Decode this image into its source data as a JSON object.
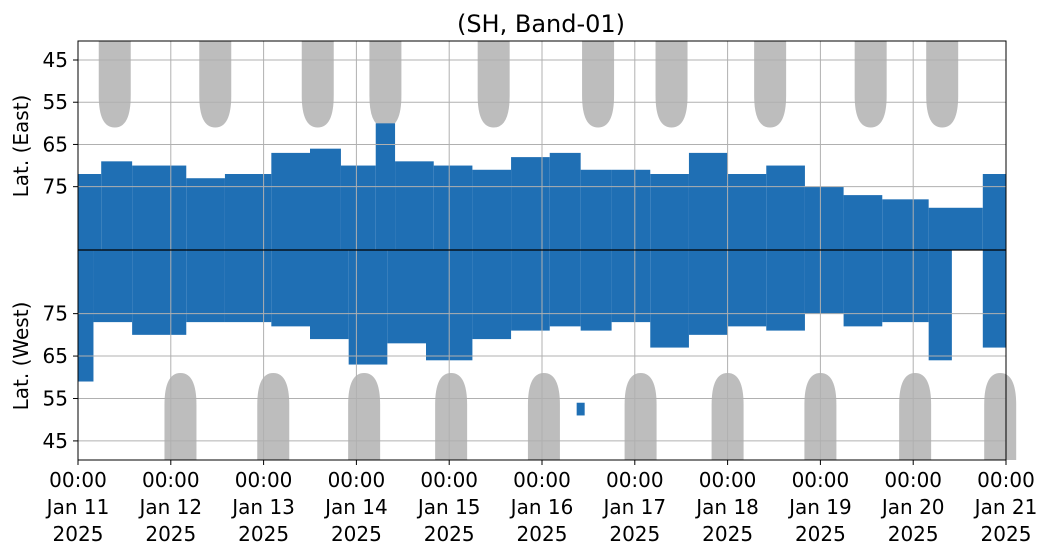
{
  "chart_data": {
    "type": "heatmap",
    "title": "(SH, Band-01)",
    "ylabel_top": "Lat. (East)",
    "ylabel_bottom": "Lat. (West)",
    "x_range": [
      "2025-01-11 00:00",
      "2025-01-21 00:00"
    ],
    "x_tick_labels": [
      {
        "date": "2025-01-11",
        "time": "00:00",
        "day": "Jan 11",
        "year": "2025"
      },
      {
        "date": "2025-01-12",
        "time": "00:00",
        "day": "Jan 12",
        "year": "2025"
      },
      {
        "date": "2025-01-13",
        "time": "00:00",
        "day": "Jan 13",
        "year": "2025"
      },
      {
        "date": "2025-01-14",
        "time": "00:00",
        "day": "Jan 14",
        "year": "2025"
      },
      {
        "date": "2025-01-15",
        "time": "00:00",
        "day": "Jan 15",
        "year": "2025"
      },
      {
        "date": "2025-01-16",
        "time": "00:00",
        "day": "Jan 16",
        "year": "2025"
      },
      {
        "date": "2025-01-17",
        "time": "00:00",
        "day": "Jan 17",
        "year": "2025"
      },
      {
        "date": "2025-01-18",
        "time": "00:00",
        "day": "Jan 18",
        "year": "2025"
      },
      {
        "date": "2025-01-19",
        "time": "00:00",
        "day": "Jan 19",
        "year": "2025"
      },
      {
        "date": "2025-01-20",
        "time": "00:00",
        "day": "Jan 20",
        "year": "2025"
      },
      {
        "date": "2025-01-21",
        "time": "00:00",
        "day": "Jan 21",
        "year": "2025"
      }
    ],
    "east_ticks": [
      "45",
      "55",
      "65",
      "75"
    ],
    "west_ticks": [
      "75",
      "65",
      "55",
      "45"
    ],
    "grid": true,
    "colors": {
      "activity_dark": "#1f6fb4",
      "activity_light": "#6aa6d2",
      "no_coverage": "#bdbdbd",
      "grid": "#b0b0b0",
      "divider": "#000000"
    },
    "no_coverage_east": [
      {
        "center": "2025-01-11 09:30",
        "lowest_lat": 61
      },
      {
        "center": "2025-01-12 11:30",
        "lowest_lat": 61
      },
      {
        "center": "2025-01-13 14:00",
        "lowest_lat": 61
      },
      {
        "center": "2025-01-14 07:30",
        "lowest_lat": 61
      },
      {
        "center": "2025-01-15 11:30",
        "lowest_lat": 61
      },
      {
        "center": "2025-01-16 14:30",
        "lowest_lat": 61
      },
      {
        "center": "2025-01-17 09:30",
        "lowest_lat": 61
      },
      {
        "center": "2025-01-18 11:00",
        "lowest_lat": 61
      },
      {
        "center": "2025-01-19 13:00",
        "lowest_lat": 61
      },
      {
        "center": "2025-01-20 07:30",
        "lowest_lat": 61
      }
    ],
    "no_coverage_west": [
      {
        "center": "2025-01-12 02:30",
        "lowest_lat": 61
      },
      {
        "center": "2025-01-13 02:30",
        "lowest_lat": 61
      },
      {
        "center": "2025-01-14 02:00",
        "lowest_lat": 61
      },
      {
        "center": "2025-01-15 00:30",
        "lowest_lat": 61
      },
      {
        "center": "2025-01-16 00:30",
        "lowest_lat": 61
      },
      {
        "center": "2025-01-17 01:30",
        "lowest_lat": 61
      },
      {
        "center": "2025-01-18 00:00",
        "lowest_lat": 61
      },
      {
        "center": "2025-01-19 00:00",
        "lowest_lat": 61
      },
      {
        "center": "2025-01-20 00:30",
        "lowest_lat": 61
      },
      {
        "center": "2025-01-20 22:30",
        "lowest_lat": 61
      }
    ],
    "activity_east": [
      {
        "start": "2025-01-11 00:00",
        "end": "2025-01-11 06:00",
        "lowest_lat": 72
      },
      {
        "start": "2025-01-11 06:00",
        "end": "2025-01-11 14:00",
        "lowest_lat": 69
      },
      {
        "start": "2025-01-11 14:00",
        "end": "2025-01-12 04:00",
        "lowest_lat": 70
      },
      {
        "start": "2025-01-12 04:00",
        "end": "2025-01-12 14:00",
        "lowest_lat": 73
      },
      {
        "start": "2025-01-12 14:00",
        "end": "2025-01-13 02:00",
        "lowest_lat": 72
      },
      {
        "start": "2025-01-13 02:00",
        "end": "2025-01-13 12:00",
        "lowest_lat": 67
      },
      {
        "start": "2025-01-13 12:00",
        "end": "2025-01-13 20:00",
        "lowest_lat": 66
      },
      {
        "start": "2025-01-13 20:00",
        "end": "2025-01-14 05:00",
        "lowest_lat": 70
      },
      {
        "start": "2025-01-14 05:00",
        "end": "2025-01-14 10:00",
        "lowest_lat": 60
      },
      {
        "start": "2025-01-14 10:00",
        "end": "2025-01-14 20:00",
        "lowest_lat": 69
      },
      {
        "start": "2025-01-14 20:00",
        "end": "2025-01-15 06:00",
        "lowest_lat": 70
      },
      {
        "start": "2025-01-15 06:00",
        "end": "2025-01-15 16:00",
        "lowest_lat": 71
      },
      {
        "start": "2025-01-15 16:00",
        "end": "2025-01-16 02:00",
        "lowest_lat": 68
      },
      {
        "start": "2025-01-16 02:00",
        "end": "2025-01-16 10:00",
        "lowest_lat": 67
      },
      {
        "start": "2025-01-16 10:00",
        "end": "2025-01-16 18:00",
        "lowest_lat": 71
      },
      {
        "start": "2025-01-16 18:00",
        "end": "2025-01-17 04:00",
        "lowest_lat": 71
      },
      {
        "start": "2025-01-17 04:00",
        "end": "2025-01-17 14:00",
        "lowest_lat": 72
      },
      {
        "start": "2025-01-17 14:00",
        "end": "2025-01-18 00:00",
        "lowest_lat": 67
      },
      {
        "start": "2025-01-18 00:00",
        "end": "2025-01-18 10:00",
        "lowest_lat": 72
      },
      {
        "start": "2025-01-18 10:00",
        "end": "2025-01-18 20:00",
        "lowest_lat": 70
      },
      {
        "start": "2025-01-18 20:00",
        "end": "2025-01-19 06:00",
        "lowest_lat": 75
      },
      {
        "start": "2025-01-19 06:00",
        "end": "2025-01-19 16:00",
        "lowest_lat": 77
      },
      {
        "start": "2025-01-19 16:00",
        "end": "2025-01-20 04:00",
        "lowest_lat": 78
      },
      {
        "start": "2025-01-20 04:00",
        "end": "2025-01-20 18:00",
        "lowest_lat": 80
      },
      {
        "start": "2025-01-20 18:00",
        "end": "2025-01-21 00:00",
        "lowest_lat": 72
      }
    ],
    "activity_west": [
      {
        "start": "2025-01-11 00:00",
        "end": "2025-01-11 04:00",
        "lowest_lat": 59
      },
      {
        "start": "2025-01-11 04:00",
        "end": "2025-01-11 14:00",
        "lowest_lat": 73
      },
      {
        "start": "2025-01-11 14:00",
        "end": "2025-01-12 04:00",
        "lowest_lat": 70
      },
      {
        "start": "2025-01-12 04:00",
        "end": "2025-01-12 14:00",
        "lowest_lat": 73
      },
      {
        "start": "2025-01-12 14:00",
        "end": "2025-01-13 02:00",
        "lowest_lat": 73
      },
      {
        "start": "2025-01-13 02:00",
        "end": "2025-01-13 12:00",
        "lowest_lat": 72
      },
      {
        "start": "2025-01-13 12:00",
        "end": "2025-01-13 22:00",
        "lowest_lat": 69
      },
      {
        "start": "2025-01-13 22:00",
        "end": "2025-01-14 08:00",
        "lowest_lat": 63
      },
      {
        "start": "2025-01-14 08:00",
        "end": "2025-01-14 18:00",
        "lowest_lat": 68
      },
      {
        "start": "2025-01-14 18:00",
        "end": "2025-01-15 06:00",
        "lowest_lat": 64
      },
      {
        "start": "2025-01-15 06:00",
        "end": "2025-01-15 16:00",
        "lowest_lat": 69
      },
      {
        "start": "2025-01-15 16:00",
        "end": "2025-01-16 02:00",
        "lowest_lat": 71
      },
      {
        "start": "2025-01-16 02:00",
        "end": "2025-01-16 10:00",
        "lowest_lat": 72
      },
      {
        "start": "2025-01-16 10:00",
        "end": "2025-01-16 18:00",
        "lowest_lat": 71
      },
      {
        "start": "2025-01-16 18:00",
        "end": "2025-01-17 04:00",
        "lowest_lat": 73
      },
      {
        "start": "2025-01-17 04:00",
        "end": "2025-01-17 14:00",
        "lowest_lat": 67
      },
      {
        "start": "2025-01-17 14:00",
        "end": "2025-01-18 00:00",
        "lowest_lat": 70
      },
      {
        "start": "2025-01-18 00:00",
        "end": "2025-01-18 10:00",
        "lowest_lat": 72
      },
      {
        "start": "2025-01-18 10:00",
        "end": "2025-01-18 20:00",
        "lowest_lat": 71
      },
      {
        "start": "2025-01-18 20:00",
        "end": "2025-01-19 06:00",
        "lowest_lat": 75
      },
      {
        "start": "2025-01-19 06:00",
        "end": "2025-01-19 16:00",
        "lowest_lat": 72
      },
      {
        "start": "2025-01-19 16:00",
        "end": "2025-01-20 04:00",
        "lowest_lat": 73
      },
      {
        "start": "2025-01-20 04:00",
        "end": "2025-01-20 10:00",
        "lowest_lat": 64
      },
      {
        "start": "2025-01-20 18:00",
        "end": "2025-01-21 00:00",
        "lowest_lat": 67
      }
    ],
    "isolated_west": [
      {
        "time": "2025-01-16 10:00",
        "lat_from": 54,
        "lat_to": 51
      }
    ]
  }
}
